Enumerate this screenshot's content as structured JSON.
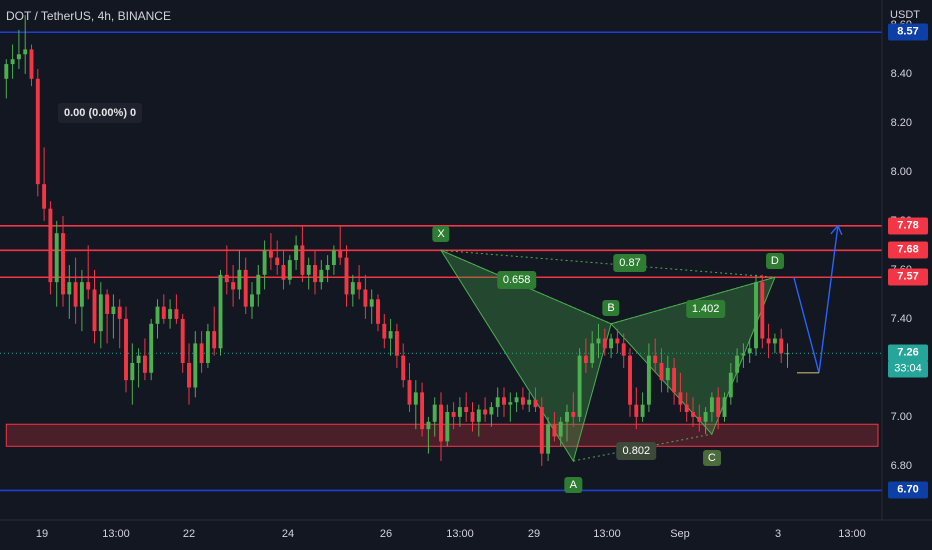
{
  "header": {
    "title": "DOT / TetherUS, 4h, BINANCE",
    "ohlc": "0.00 (0.00%) 0",
    "unit": "USDT"
  },
  "y_ticks": [
    "8.60",
    "8.40",
    "8.20",
    "8.00",
    "7.80",
    "7.60",
    "7.40",
    "7.20",
    "7.00",
    "6.80"
  ],
  "x_ticks": [
    "19",
    "13:00",
    "22",
    "24",
    "26",
    "13:00",
    "29",
    "13:00",
    "Sep",
    "3",
    "13:00"
  ],
  "price_tags": [
    {
      "label": "8.57",
      "value": 8.57,
      "color": "#0d3fa6"
    },
    {
      "label": "7.78",
      "value": 7.78,
      "color": "#f23645"
    },
    {
      "label": "7.68",
      "value": 7.68,
      "color": "#f23645"
    },
    {
      "label": "7.57",
      "value": 7.57,
      "color": "#f23645"
    },
    {
      "label": "7.26",
      "value": 7.26,
      "color": "#26a69a"
    },
    {
      "label": "6.70",
      "value": 6.7,
      "color": "#0d3fa6"
    }
  ],
  "countdown": "33:04",
  "pattern_points": [
    {
      "label": "X",
      "time": 69,
      "price": 7.68
    },
    {
      "label": "A",
      "time": 90,
      "price": 6.82
    },
    {
      "label": "B",
      "time": 96,
      "price": 7.38
    },
    {
      "label": "C",
      "time": 112,
      "price": 6.93
    },
    {
      "label": "D",
      "time": 122,
      "price": 7.57
    }
  ],
  "ratios": [
    {
      "label": "0.658",
      "time": 81,
      "price": 7.56
    },
    {
      "label": "0.87",
      "time": 99,
      "price": 7.63
    },
    {
      "label": "1.402",
      "time": 111,
      "price": 7.44
    },
    {
      "label": "0.802",
      "time": 100,
      "price": 6.86
    }
  ],
  "chart_data": {
    "type": "candlestick",
    "symbol": "DOT / TetherUS",
    "interval": "4h",
    "exchange": "BINANCE",
    "ylim": [
      6.62,
      8.62
    ],
    "x_range": [
      -1,
      139
    ],
    "grid": false,
    "horizontal_levels": [
      {
        "value": 8.57,
        "color": "#1e3fd6"
      },
      {
        "value": 7.78,
        "color": "#f23645"
      },
      {
        "value": 7.68,
        "color": "#f23645"
      },
      {
        "value": 7.57,
        "color": "#f23645"
      },
      {
        "value": 6.7,
        "color": "#1e3fd6"
      }
    ],
    "zone": {
      "from_time": 0,
      "to_time": 139,
      "low": 6.88,
      "high": 6.97
    },
    "current_price": 7.26,
    "projection": [
      [
        125,
        7.57
      ],
      [
        129,
        7.18
      ],
      [
        132,
        7.78
      ]
    ],
    "candles": [
      [
        8.38,
        8.46,
        8.3,
        8.44
      ],
      [
        8.44,
        8.52,
        8.38,
        8.46
      ],
      [
        8.46,
        8.58,
        8.42,
        8.48
      ],
      [
        8.48,
        8.64,
        8.4,
        8.5
      ],
      [
        8.5,
        8.52,
        8.35,
        8.38
      ],
      [
        8.38,
        8.42,
        7.9,
        7.95
      ],
      [
        7.95,
        8.1,
        7.8,
        7.85
      ],
      [
        7.85,
        7.88,
        7.5,
        7.55
      ],
      [
        7.55,
        7.8,
        7.45,
        7.75
      ],
      [
        7.75,
        7.82,
        7.45,
        7.5
      ],
      [
        7.5,
        7.62,
        7.4,
        7.55
      ],
      [
        7.55,
        7.65,
        7.38,
        7.45
      ],
      [
        7.45,
        7.6,
        7.35,
        7.55
      ],
      [
        7.55,
        7.7,
        7.48,
        7.52
      ],
      [
        7.52,
        7.6,
        7.3,
        7.35
      ],
      [
        7.35,
        7.55,
        7.28,
        7.5
      ],
      [
        7.5,
        7.52,
        7.3,
        7.42
      ],
      [
        7.42,
        7.5,
        7.32,
        7.45
      ],
      [
        7.45,
        7.48,
        7.28,
        7.4
      ],
      [
        7.4,
        7.45,
        7.1,
        7.15
      ],
      [
        7.15,
        7.3,
        7.05,
        7.22
      ],
      [
        7.22,
        7.28,
        7.12,
        7.25
      ],
      [
        7.25,
        7.32,
        7.15,
        7.18
      ],
      [
        7.18,
        7.4,
        7.15,
        7.38
      ],
      [
        7.38,
        7.48,
        7.32,
        7.45
      ],
      [
        7.45,
        7.5,
        7.38,
        7.4
      ],
      [
        7.4,
        7.48,
        7.36,
        7.44
      ],
      [
        7.44,
        7.5,
        7.38,
        7.4
      ],
      [
        7.4,
        7.42,
        7.18,
        7.22
      ],
      [
        7.22,
        7.3,
        7.05,
        7.12
      ],
      [
        7.12,
        7.35,
        7.08,
        7.3
      ],
      [
        7.3,
        7.35,
        7.18,
        7.22
      ],
      [
        7.22,
        7.38,
        7.2,
        7.35
      ],
      [
        7.35,
        7.45,
        7.25,
        7.28
      ],
      [
        7.28,
        7.6,
        7.25,
        7.58
      ],
      [
        7.58,
        7.7,
        7.5,
        7.55
      ],
      [
        7.55,
        7.62,
        7.45,
        7.52
      ],
      [
        7.52,
        7.68,
        7.48,
        7.6
      ],
      [
        7.6,
        7.65,
        7.42,
        7.45
      ],
      [
        7.45,
        7.55,
        7.4,
        7.5
      ],
      [
        7.5,
        7.62,
        7.45,
        7.58
      ],
      [
        7.58,
        7.72,
        7.52,
        7.68
      ],
      [
        7.68,
        7.75,
        7.6,
        7.65
      ],
      [
        7.65,
        7.72,
        7.58,
        7.62
      ],
      [
        7.62,
        7.68,
        7.52,
        7.56
      ],
      [
        7.56,
        7.66,
        7.54,
        7.64
      ],
      [
        7.64,
        7.74,
        7.6,
        7.7
      ],
      [
        7.7,
        7.78,
        7.55,
        7.58
      ],
      [
        7.58,
        7.65,
        7.52,
        7.62
      ],
      [
        7.62,
        7.68,
        7.5,
        7.55
      ],
      [
        7.55,
        7.64,
        7.52,
        7.6
      ],
      [
        7.6,
        7.66,
        7.55,
        7.62
      ],
      [
        7.62,
        7.7,
        7.58,
        7.68
      ],
      [
        7.68,
        7.78,
        7.62,
        7.65
      ],
      [
        7.65,
        7.7,
        7.45,
        7.5
      ],
      [
        7.5,
        7.58,
        7.45,
        7.55
      ],
      [
        7.55,
        7.62,
        7.48,
        7.52
      ],
      [
        7.52,
        7.58,
        7.4,
        7.45
      ],
      [
        7.45,
        7.52,
        7.38,
        7.48
      ],
      [
        7.48,
        7.5,
        7.35,
        7.38
      ],
      [
        7.38,
        7.42,
        7.28,
        7.32
      ],
      [
        7.32,
        7.4,
        7.25,
        7.35
      ],
      [
        7.35,
        7.38,
        7.2,
        7.25
      ],
      [
        7.25,
        7.3,
        7.12,
        7.15
      ],
      [
        7.15,
        7.22,
        7.02,
        7.05
      ],
      [
        7.05,
        7.15,
        6.95,
        7.1
      ],
      [
        7.1,
        7.14,
        6.92,
        6.95
      ],
      [
        6.95,
        7.0,
        6.85,
        6.98
      ],
      [
        6.98,
        7.08,
        6.92,
        7.05
      ],
      [
        7.05,
        7.1,
        6.82,
        6.9
      ],
      [
        6.9,
        7.05,
        6.88,
        7.02
      ],
      [
        7.02,
        7.06,
        6.95,
        7.0
      ],
      [
        7.0,
        7.08,
        6.96,
        7.04
      ],
      [
        7.04,
        7.1,
        6.98,
        7.02
      ],
      [
        7.02,
        7.06,
        6.94,
        6.98
      ],
      [
        6.98,
        7.05,
        6.92,
        7.03
      ],
      [
        7.03,
        7.08,
        6.98,
        7.01
      ],
      [
        7.01,
        7.06,
        6.96,
        7.04
      ],
      [
        7.04,
        7.12,
        7.0,
        7.08
      ],
      [
        7.08,
        7.12,
        7.0,
        7.05
      ],
      [
        7.05,
        7.1,
        6.98,
        7.06
      ],
      [
        7.06,
        7.1,
        7.02,
        7.08
      ],
      [
        7.08,
        7.12,
        7.03,
        7.05
      ],
      [
        7.05,
        7.1,
        7.02,
        7.07
      ],
      [
        7.07,
        7.12,
        7.02,
        7.04
      ],
      [
        7.04,
        7.08,
        6.8,
        6.85
      ],
      [
        6.85,
        7.0,
        6.82,
        6.97
      ],
      [
        6.97,
        7.02,
        6.9,
        6.92
      ],
      [
        6.92,
        7.0,
        6.88,
        6.98
      ],
      [
        6.98,
        7.05,
        6.9,
        7.02
      ],
      [
        7.02,
        7.1,
        6.96,
        7.0
      ],
      [
        7.0,
        7.28,
        6.98,
        7.25
      ],
      [
        7.25,
        7.32,
        7.18,
        7.22
      ],
      [
        7.22,
        7.35,
        7.2,
        7.3
      ],
      [
        7.3,
        7.38,
        7.24,
        7.32
      ],
      [
        7.32,
        7.36,
        7.25,
        7.28
      ],
      [
        7.28,
        7.34,
        7.24,
        7.32
      ],
      [
        7.32,
        7.36,
        7.26,
        7.3
      ],
      [
        7.3,
        7.34,
        7.2,
        7.25
      ],
      [
        7.25,
        7.28,
        7.0,
        7.05
      ],
      [
        7.05,
        7.12,
        6.95,
        7.0
      ],
      [
        7.0,
        7.1,
        6.98,
        7.05
      ],
      [
        7.05,
        7.3,
        7.02,
        7.25
      ],
      [
        7.25,
        7.32,
        7.18,
        7.22
      ],
      [
        7.22,
        7.28,
        7.1,
        7.15
      ],
      [
        7.15,
        7.25,
        7.1,
        7.2
      ],
      [
        7.2,
        7.24,
        7.05,
        7.1
      ],
      [
        7.1,
        7.18,
        7.02,
        7.05
      ],
      [
        7.05,
        7.1,
        6.98,
        7.02
      ],
      [
        7.02,
        7.08,
        6.96,
        7.0
      ],
      [
        7.0,
        7.05,
        6.94,
        6.98
      ],
      [
        6.98,
        7.04,
        6.93,
        7.02
      ],
      [
        7.02,
        7.1,
        6.98,
        7.08
      ],
      [
        7.08,
        7.12,
        6.95,
        7.0
      ],
      [
        7.0,
        7.1,
        6.98,
        7.08
      ],
      [
        7.08,
        7.22,
        7.05,
        7.18
      ],
      [
        7.18,
        7.28,
        7.14,
        7.25
      ],
      [
        7.25,
        7.3,
        7.2,
        7.26
      ],
      [
        7.26,
        7.32,
        7.22,
        7.28
      ],
      [
        7.28,
        7.58,
        7.25,
        7.55
      ],
      [
        7.55,
        7.58,
        7.28,
        7.32
      ],
      [
        7.32,
        7.38,
        7.24,
        7.3
      ],
      [
        7.3,
        7.34,
        7.26,
        7.32
      ],
      [
        7.32,
        7.36,
        7.22,
        7.26
      ],
      [
        7.26,
        7.3,
        7.2,
        7.26
      ]
    ]
  }
}
